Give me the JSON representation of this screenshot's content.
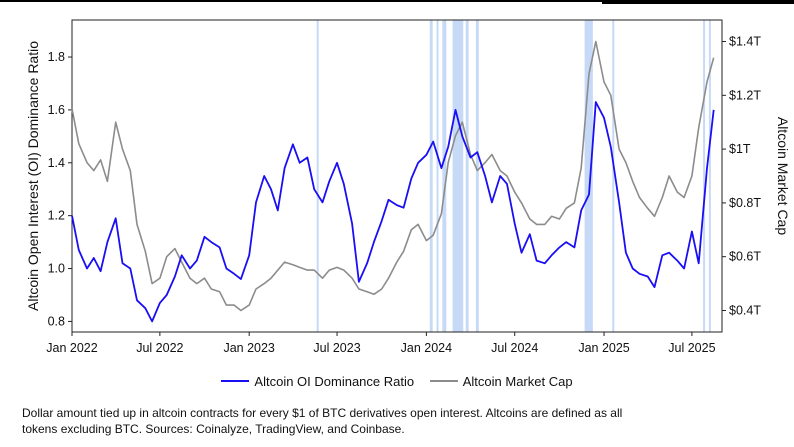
{
  "chart_data": {
    "type": "line",
    "xlabel": "",
    "ylabel_left": "Altcoin Open Interest (OI) Dominance Ratio",
    "ylabel_right": "Altcoin Market Cap",
    "x_ticks": [
      "Jan 2022",
      "Jul 2022",
      "Jan 2023",
      "Jul 2023",
      "Jan 2024",
      "Jul 2024",
      "Jan 2025",
      "Jul 2025"
    ],
    "y_left_ticks": [
      "0.8",
      "1.0",
      "1.2",
      "1.4",
      "1.6",
      "1.8"
    ],
    "y_right_ticks": [
      "$0.4T",
      "$0.6T",
      "$0.8T",
      "$1T",
      "$1.2T",
      "$1.4T"
    ],
    "ylim_left": [
      0.76,
      1.94
    ],
    "ylim_right": [
      0.32,
      1.48
    ],
    "xlim": [
      "2022-01-01",
      "2025-09-01"
    ],
    "grid": false,
    "legend_position": "bottom",
    "highlight_bands": [
      [
        "2023-05-20",
        "2023-05-24"
      ],
      [
        "2024-01-08",
        "2024-01-14"
      ],
      [
        "2024-01-22",
        "2024-01-26"
      ],
      [
        "2024-02-03",
        "2024-02-11"
      ],
      [
        "2024-02-24",
        "2024-03-17"
      ],
      [
        "2024-03-22",
        "2024-03-28"
      ],
      [
        "2024-04-12",
        "2024-04-18"
      ],
      [
        "2024-11-22",
        "2024-12-09"
      ],
      [
        "2025-01-18",
        "2025-01-22"
      ],
      [
        "2025-07-24",
        "2025-07-28"
      ],
      [
        "2025-08-05",
        "2025-08-09"
      ]
    ],
    "series": [
      {
        "name": "Altcoin OI Dominance Ratio",
        "color": "#1a0ef5",
        "axis": "left",
        "x": [
          "2022-01-01",
          "2022-01-15",
          "2022-02-01",
          "2022-02-15",
          "2022-03-01",
          "2022-03-15",
          "2022-04-01",
          "2022-04-15",
          "2022-05-01",
          "2022-05-15",
          "2022-06-01",
          "2022-06-15",
          "2022-07-01",
          "2022-07-15",
          "2022-08-01",
          "2022-08-15",
          "2022-09-01",
          "2022-09-15",
          "2022-10-01",
          "2022-10-15",
          "2022-11-01",
          "2022-11-15",
          "2022-12-01",
          "2022-12-15",
          "2023-01-01",
          "2023-01-15",
          "2023-02-01",
          "2023-02-15",
          "2023-03-01",
          "2023-03-15",
          "2023-04-01",
          "2023-04-15",
          "2023-05-01",
          "2023-05-15",
          "2023-06-01",
          "2023-06-15",
          "2023-07-01",
          "2023-07-15",
          "2023-08-01",
          "2023-08-15",
          "2023-09-01",
          "2023-09-15",
          "2023-10-01",
          "2023-10-15",
          "2023-11-01",
          "2023-11-15",
          "2023-12-01",
          "2023-12-15",
          "2024-01-01",
          "2024-01-15",
          "2024-02-01",
          "2024-02-15",
          "2024-03-01",
          "2024-03-15",
          "2024-04-01",
          "2024-04-15",
          "2024-05-01",
          "2024-05-15",
          "2024-06-01",
          "2024-06-15",
          "2024-07-01",
          "2024-07-15",
          "2024-08-01",
          "2024-08-15",
          "2024-09-01",
          "2024-09-15",
          "2024-10-01",
          "2024-10-15",
          "2024-11-01",
          "2024-11-15",
          "2024-12-01",
          "2024-12-15",
          "2025-01-01",
          "2025-01-15",
          "2025-02-01",
          "2025-02-15",
          "2025-03-01",
          "2025-03-15",
          "2025-04-01",
          "2025-04-15",
          "2025-05-01",
          "2025-05-15",
          "2025-06-01",
          "2025-06-15",
          "2025-07-01",
          "2025-07-15",
          "2025-08-01",
          "2025-08-15"
        ],
        "values": [
          1.2,
          1.07,
          1.0,
          1.04,
          0.99,
          1.1,
          1.19,
          1.02,
          1.0,
          0.88,
          0.85,
          0.8,
          0.87,
          0.9,
          0.97,
          1.05,
          1.0,
          1.03,
          1.12,
          1.1,
          1.08,
          1.0,
          0.98,
          0.96,
          1.05,
          1.25,
          1.35,
          1.3,
          1.22,
          1.38,
          1.47,
          1.4,
          1.42,
          1.3,
          1.25,
          1.33,
          1.4,
          1.32,
          1.17,
          0.95,
          1.02,
          1.1,
          1.18,
          1.26,
          1.24,
          1.23,
          1.34,
          1.4,
          1.43,
          1.48,
          1.38,
          1.46,
          1.6,
          1.5,
          1.42,
          1.44,
          1.35,
          1.25,
          1.35,
          1.32,
          1.17,
          1.06,
          1.13,
          1.03,
          1.02,
          1.05,
          1.08,
          1.1,
          1.08,
          1.22,
          1.28,
          1.63,
          1.57,
          1.46,
          1.25,
          1.06,
          1.0,
          0.98,
          0.97,
          0.93,
          1.05,
          1.06,
          1.03,
          1.0,
          1.14,
          1.02,
          1.38,
          1.6
        ]
      },
      {
        "name": "Altcoin Market Cap",
        "color": "#8c8c8c",
        "axis": "right",
        "x": [
          "2022-01-01",
          "2022-01-15",
          "2022-02-01",
          "2022-02-15",
          "2022-03-01",
          "2022-03-15",
          "2022-04-01",
          "2022-04-15",
          "2022-05-01",
          "2022-05-15",
          "2022-06-01",
          "2022-06-15",
          "2022-07-01",
          "2022-07-15",
          "2022-08-01",
          "2022-08-15",
          "2022-09-01",
          "2022-09-15",
          "2022-10-01",
          "2022-10-15",
          "2022-11-01",
          "2022-11-15",
          "2022-12-01",
          "2022-12-15",
          "2023-01-01",
          "2023-01-15",
          "2023-02-01",
          "2023-02-15",
          "2023-03-01",
          "2023-03-15",
          "2023-04-01",
          "2023-04-15",
          "2023-05-01",
          "2023-05-15",
          "2023-06-01",
          "2023-06-15",
          "2023-07-01",
          "2023-07-15",
          "2023-08-01",
          "2023-08-15",
          "2023-09-01",
          "2023-09-15",
          "2023-10-01",
          "2023-10-15",
          "2023-11-01",
          "2023-11-15",
          "2023-12-01",
          "2023-12-15",
          "2024-01-01",
          "2024-01-15",
          "2024-02-01",
          "2024-02-15",
          "2024-03-01",
          "2024-03-15",
          "2024-04-01",
          "2024-04-15",
          "2024-05-01",
          "2024-05-15",
          "2024-06-01",
          "2024-06-15",
          "2024-07-01",
          "2024-07-15",
          "2024-08-01",
          "2024-08-15",
          "2024-09-01",
          "2024-09-15",
          "2024-10-01",
          "2024-10-15",
          "2024-11-01",
          "2024-11-15",
          "2024-12-01",
          "2024-12-15",
          "2025-01-01",
          "2025-01-15",
          "2025-02-01",
          "2025-02-15",
          "2025-03-01",
          "2025-03-15",
          "2025-04-01",
          "2025-04-15",
          "2025-05-01",
          "2025-05-15",
          "2025-06-01",
          "2025-06-15",
          "2025-07-01",
          "2025-07-15",
          "2025-08-01",
          "2025-08-15"
        ],
        "values": [
          1.15,
          1.02,
          0.95,
          0.92,
          0.96,
          0.88,
          1.1,
          1.0,
          0.92,
          0.72,
          0.62,
          0.5,
          0.52,
          0.6,
          0.63,
          0.58,
          0.52,
          0.5,
          0.52,
          0.48,
          0.47,
          0.42,
          0.42,
          0.4,
          0.42,
          0.48,
          0.5,
          0.52,
          0.55,
          0.58,
          0.57,
          0.56,
          0.55,
          0.55,
          0.52,
          0.55,
          0.56,
          0.55,
          0.52,
          0.48,
          0.47,
          0.46,
          0.48,
          0.52,
          0.58,
          0.62,
          0.7,
          0.72,
          0.66,
          0.68,
          0.76,
          0.95,
          1.05,
          1.1,
          0.98,
          0.92,
          0.95,
          0.98,
          0.92,
          0.9,
          0.84,
          0.8,
          0.74,
          0.72,
          0.72,
          0.75,
          0.74,
          0.78,
          0.8,
          0.93,
          1.28,
          1.4,
          1.25,
          1.2,
          1.0,
          0.95,
          0.88,
          0.82,
          0.78,
          0.75,
          0.82,
          0.9,
          0.84,
          0.82,
          0.9,
          1.08,
          1.25,
          1.34
        ]
      }
    ]
  },
  "caption": "Dollar amount tied up in altcoin contracts for every $1 of BTC derivatives open interest. Altcoins are defined as all tokens excluding BTC. Sources: Coinalyze, TradingView, and Coinbase."
}
